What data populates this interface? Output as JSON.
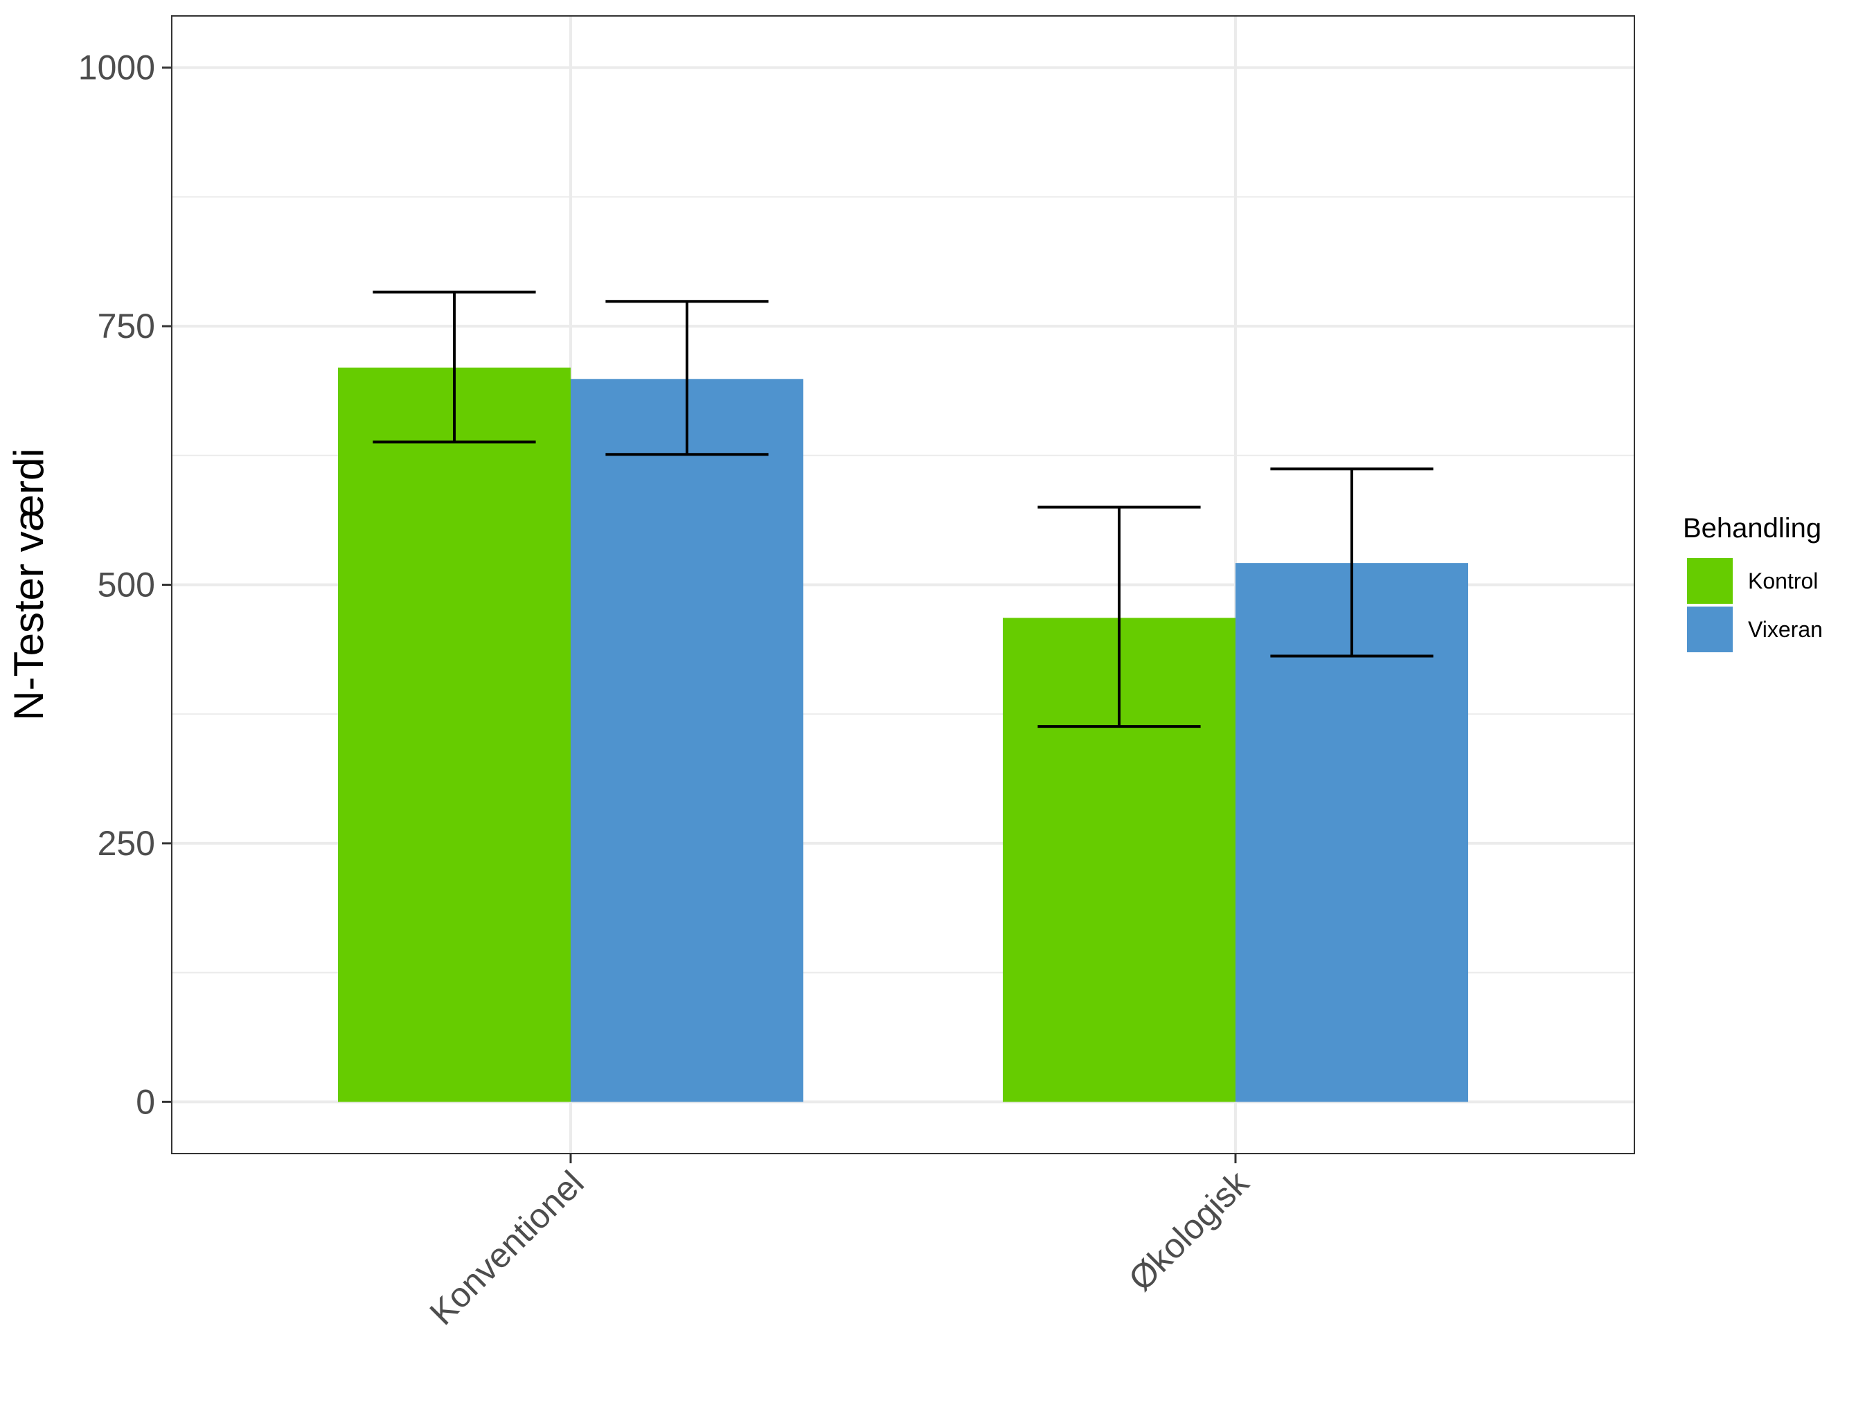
{
  "colors": {
    "kontrol": "#66CC00",
    "vixeran": "#4F93CE",
    "grid": "#EBEBEB",
    "panel_border": "#333333",
    "errorbar": "#000000"
  },
  "chart_data": {
    "type": "bar",
    "title": "",
    "xlabel": "",
    "ylabel": "N-Tester værdi",
    "categories": [
      "Konventionel",
      "Økologisk"
    ],
    "yticks": [
      0,
      250,
      500,
      750,
      1000
    ],
    "ylim": [
      -50,
      1050
    ],
    "grid": true,
    "legend_position": "right",
    "legend_title": "Behandling",
    "series": [
      {
        "name": "Kontrol",
        "color": "#66CC00",
        "values": [
          710,
          468
        ],
        "error_low": [
          638,
          363
        ],
        "error_high": [
          783,
          575
        ]
      },
      {
        "name": "Vixeran",
        "color": "#4F93CE",
        "values": [
          699,
          521
        ],
        "error_low": [
          626,
          431
        ],
        "error_high": [
          774,
          612
        ]
      }
    ]
  }
}
